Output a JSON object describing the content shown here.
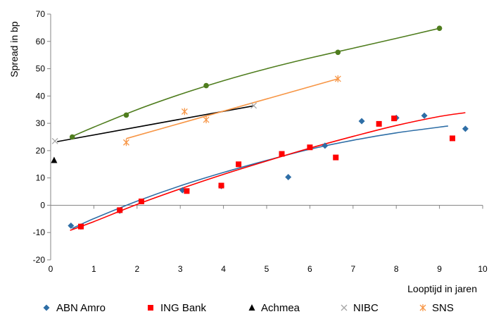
{
  "chart_data": {
    "type": "scatter",
    "title": "",
    "xlabel": "Looptijd in jaren",
    "ylabel": "Spread in bp",
    "xlim": [
      0,
      10
    ],
    "ylim": [
      -20,
      70
    ],
    "x_ticks": [
      "0",
      "1",
      "2",
      "3",
      "4",
      "5",
      "6",
      "7",
      "8",
      "9",
      "10"
    ],
    "y_ticks": [
      "-20",
      "-10",
      "0",
      "10",
      "20",
      "30",
      "40",
      "50",
      "60",
      "70"
    ],
    "grid": false,
    "legend_position": "bottom",
    "series": [
      {
        "name": "ABN Amro",
        "marker": "diamond",
        "color": "#2E6EA6",
        "x": [
          0.47,
          0.7,
          1.6,
          3.05,
          3.95,
          5.5,
          6.35,
          7.2,
          8.0,
          8.65,
          9.6
        ],
        "y": [
          -7.5,
          -7.8,
          -2.0,
          5.5,
          7.0,
          10.3,
          21.8,
          30.8,
          32.0,
          32.8,
          28.0
        ],
        "trend": {
          "type": "polynomial",
          "color": "#2E6EA6",
          "x": [
            0.5,
            1,
            2,
            3,
            4,
            5,
            6,
            7,
            8,
            9,
            9.2
          ],
          "y": [
            -8.5,
            -4.9,
            1.5,
            7.1,
            12.0,
            16.4,
            20.5,
            23.8,
            26.5,
            28.6,
            29.0
          ]
        }
      },
      {
        "name": "ING Bank",
        "marker": "square",
        "color": "#FF0000",
        "x": [
          0.7,
          1.6,
          2.1,
          3.15,
          3.95,
          4.35,
          5.35,
          6.0,
          6.6,
          7.6,
          7.95,
          9.3
        ],
        "y": [
          -7.8,
          -1.8,
          1.4,
          5.2,
          7.2,
          15.0,
          18.8,
          21.2,
          17.5,
          29.8,
          31.8,
          24.5
        ],
        "trend": {
          "type": "polynomial",
          "color": "#FF0000",
          "x": [
            0.45,
            1,
            2,
            3,
            4,
            5,
            6,
            7,
            8,
            9,
            9.6
          ],
          "y": [
            -9.2,
            -6.0,
            0.3,
            6.0,
            11.3,
            16.2,
            20.9,
            25.2,
            29.2,
            32.5,
            33.9
          ]
        }
      },
      {
        "name": "Achmea",
        "marker": "triangle",
        "color": "#000000",
        "x": [
          0.08
        ],
        "y": [
          16.5
        ]
      },
      {
        "name": "NIBC",
        "marker": "x",
        "color": "#A6A6A6",
        "x": [
          0.1,
          4.7
        ],
        "y": [
          23.5,
          36.5
        ],
        "trend": {
          "type": "linear",
          "color": "#000000",
          "x": [
            0.15,
            4.7
          ],
          "y": [
            23.3,
            36.4
          ]
        }
      },
      {
        "name": "SNS",
        "marker": "star",
        "color": "#F79646",
        "x": [
          1.75,
          3.1,
          3.6,
          6.65
        ],
        "y": [
          23.0,
          34.3,
          31.3,
          46.3
        ],
        "trend": {
          "type": "linear",
          "color": "#F79646",
          "x": [
            1.75,
            6.65
          ],
          "y": [
            24.4,
            46.3
          ]
        }
      },
      {
        "name": "",
        "marker": "circle",
        "color": "#4F7D1E",
        "x": [
          0.5,
          1.75,
          3.6,
          6.65,
          9.0
        ],
        "y": [
          25.0,
          33.0,
          43.8,
          56.0,
          64.8
        ],
        "trend": {
          "type": "polynomial",
          "color": "#4F7D1E",
          "x": [
            0.5,
            1,
            2,
            3,
            4,
            5,
            6,
            7,
            8,
            9
          ],
          "y": [
            25.2,
            28.6,
            35.0,
            40.6,
            45.6,
            50.0,
            53.9,
            57.5,
            61.1,
            64.8
          ]
        }
      }
    ]
  }
}
